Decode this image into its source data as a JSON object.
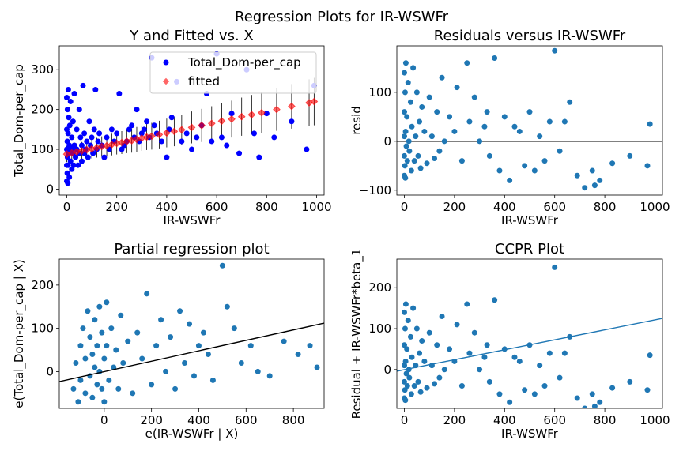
{
  "figure": {
    "suptitle": "Regression Plots for IR-WSWFr",
    "background": "#ffffff"
  },
  "colors": {
    "observed": "#0000ff",
    "fitted": "#ff0000",
    "scatter": "#1f77b4",
    "error_bars": "#000000",
    "fit_line_black": "#000000",
    "ccpr_line": "#1f77b4",
    "zero_line": "#000000"
  },
  "chart_data": [
    {
      "id": "yfit",
      "type": "scatter",
      "title": "Y and Fitted vs. X",
      "xlabel": "IR-WSWFr",
      "ylabel": "Total_Dom-per_cap",
      "xlim": [
        -30,
        1030
      ],
      "ylim": [
        -15,
        360
      ],
      "xticks": [
        0,
        200,
        400,
        600,
        800,
        1000
      ],
      "yticks": [
        0,
        100,
        200,
        300
      ],
      "legend": {
        "placement": "top-right",
        "entries": [
          "Total_Dom-per_cap",
          "fitted"
        ]
      },
      "series": [
        {
          "name": "Total_Dom-per_cap",
          "marker": "circle",
          "x": [
            0,
            0,
            0,
            0,
            0,
            2,
            2,
            3,
            3,
            4,
            5,
            5,
            6,
            8,
            8,
            10,
            10,
            12,
            15,
            15,
            18,
            20,
            20,
            25,
            25,
            28,
            30,
            30,
            35,
            40,
            40,
            45,
            50,
            50,
            55,
            60,
            60,
            65,
            70,
            70,
            75,
            80,
            85,
            90,
            95,
            100,
            105,
            110,
            115,
            120,
            125,
            130,
            140,
            150,
            160,
            170,
            180,
            190,
            200,
            210,
            220,
            230,
            240,
            250,
            260,
            270,
            280,
            290,
            300,
            310,
            320,
            330,
            340,
            350,
            360,
            380,
            400,
            410,
            420,
            440,
            460,
            480,
            500,
            520,
            540,
            560,
            580,
            600,
            620,
            640,
            660,
            690,
            720,
            750,
            770,
            800,
            830,
            900,
            960,
            990
          ],
          "y": [
            20,
            60,
            100,
            150,
            230,
            40,
            120,
            80,
            200,
            15,
            60,
            140,
            250,
            90,
            180,
            30,
            110,
            160,
            70,
            220,
            100,
            50,
            130,
            90,
            170,
            60,
            110,
            240,
            80,
            100,
            150,
            60,
            90,
            200,
            130,
            70,
            110,
            260,
            90,
            140,
            100,
            120,
            80,
            170,
            110,
            130,
            90,
            150,
            250,
            100,
            120,
            140,
            110,
            80,
            130,
            100,
            150,
            120,
            140,
            240,
            100,
            110,
            120,
            150,
            160,
            130,
            200,
            120,
            140,
            150,
            170,
            130,
            330,
            160,
            140,
            120,
            80,
            150,
            180,
            270,
            120,
            140,
            100,
            130,
            160,
            240,
            120,
            340,
            130,
            110,
            190,
            90,
            300,
            140,
            80,
            190,
            130,
            170,
            100,
            260
          ]
        },
        {
          "name": "fitted",
          "marker": "diamond",
          "x": [
            0,
            20,
            40,
            60,
            80,
            100,
            120,
            140,
            160,
            180,
            200,
            220,
            240,
            260,
            280,
            300,
            320,
            340,
            370,
            400,
            430,
            460,
            500,
            540,
            580,
            620,
            660,
            700,
            740,
            780,
            840,
            900,
            970,
            990
          ],
          "y": [
            88,
            91,
            94,
            96,
            99,
            101,
            104,
            107,
            109,
            112,
            115,
            117,
            120,
            122,
            125,
            128,
            131,
            133,
            137,
            141,
            145,
            149,
            155,
            160,
            165,
            171,
            176,
            182,
            187,
            192,
            200,
            208,
            217,
            220
          ]
        }
      ]
    },
    {
      "id": "resid",
      "type": "scatter",
      "title": "Residuals versus IR-WSWFr",
      "xlabel": "IR-WSWFr",
      "ylabel": "resid",
      "xlim": [
        -30,
        1030
      ],
      "ylim": [
        -110,
        195
      ],
      "xticks": [
        0,
        200,
        400,
        600,
        800,
        1000
      ],
      "yticks": [
        -100,
        0,
        100
      ],
      "zero_line": 0,
      "x": [
        0,
        0,
        0,
        0,
        0,
        2,
        3,
        4,
        5,
        6,
        8,
        10,
        12,
        15,
        18,
        20,
        25,
        28,
        30,
        35,
        40,
        45,
        50,
        55,
        60,
        65,
        70,
        80,
        90,
        100,
        110,
        120,
        130,
        140,
        150,
        160,
        180,
        200,
        210,
        230,
        250,
        260,
        280,
        300,
        320,
        330,
        340,
        360,
        380,
        400,
        420,
        440,
        460,
        480,
        500,
        520,
        540,
        560,
        580,
        600,
        620,
        640,
        660,
        690,
        720,
        750,
        760,
        780,
        830,
        900,
        970,
        980
      ],
      "y": [
        -70,
        -30,
        10,
        60,
        140,
        -50,
        100,
        -75,
        20,
        160,
        -10,
        50,
        -40,
        120,
        0,
        -20,
        80,
        -60,
        30,
        150,
        -40,
        10,
        100,
        -30,
        40,
        -55,
        70,
        20,
        -45,
        90,
        10,
        -35,
        60,
        -20,
        130,
        0,
        50,
        20,
        110,
        -40,
        160,
        40,
        90,
        0,
        30,
        60,
        -30,
        170,
        -60,
        50,
        -80,
        30,
        20,
        -50,
        60,
        -60,
        10,
        -40,
        40,
        185,
        -20,
        40,
        80,
        -70,
        -95,
        -60,
        -90,
        -80,
        -45,
        -30,
        -50,
        35
      ]
    },
    {
      "id": "partial",
      "type": "scatter",
      "title": "Partial regression plot",
      "xlabel": "e(IR-WSWFr | X)",
      "ylabel": "e(Total_Dom-per_cap | X)",
      "xlim": [
        -190,
        930
      ],
      "ylim": [
        -85,
        260
      ],
      "xticks": [
        0,
        200,
        400,
        600,
        800
      ],
      "yticks": [
        0,
        100,
        200
      ],
      "fit_line": {
        "x": [
          -190,
          930
        ],
        "y": [
          -23,
          112
        ]
      },
      "x": [
        -130,
        -120,
        -110,
        -100,
        -100,
        -90,
        -80,
        -80,
        -70,
        -60,
        -60,
        -50,
        -50,
        -40,
        -40,
        -30,
        -30,
        -20,
        -20,
        -10,
        -10,
        0,
        0,
        10,
        10,
        20,
        30,
        40,
        50,
        60,
        70,
        80,
        100,
        120,
        140,
        160,
        180,
        200,
        220,
        240,
        260,
        280,
        300,
        320,
        340,
        360,
        380,
        400,
        420,
        440,
        460,
        500,
        520,
        550,
        580,
        620,
        650,
        700,
        760,
        820,
        870,
        900
      ],
      "y": [
        -40,
        20,
        -70,
        60,
        -20,
        100,
        -50,
        30,
        140,
        -10,
        80,
        40,
        -60,
        10,
        120,
        -30,
        60,
        0,
        150,
        -40,
        90,
        30,
        -70,
        60,
        160,
        -20,
        100,
        10,
        50,
        -40,
        130,
        20,
        70,
        -50,
        90,
        30,
        180,
        -30,
        60,
        120,
        0,
        80,
        -40,
        140,
        20,
        110,
        -10,
        60,
        90,
        40,
        -20,
        245,
        150,
        100,
        20,
        60,
        0,
        -10,
        70,
        40,
        60,
        10
      ]
    },
    {
      "id": "ccpr",
      "type": "scatter",
      "title": "CCPR Plot",
      "xlabel": "IR-WSWFr",
      "ylabel": "Residual + IR-WSWFr*beta_1",
      "xlim": [
        -30,
        1030
      ],
      "ylim": [
        -95,
        270
      ],
      "xticks": [
        0,
        200,
        400,
        600,
        800,
        1000
      ],
      "yticks": [
        0,
        100,
        200
      ],
      "fit_line": {
        "x": [
          -30,
          1030
        ],
        "y": [
          -4,
          125
        ]
      },
      "x": [
        0,
        0,
        0,
        0,
        0,
        2,
        3,
        4,
        5,
        6,
        8,
        10,
        12,
        15,
        18,
        20,
        25,
        28,
        30,
        35,
        40,
        45,
        50,
        55,
        60,
        65,
        70,
        80,
        90,
        100,
        110,
        120,
        130,
        140,
        150,
        160,
        180,
        200,
        210,
        230,
        250,
        260,
        280,
        300,
        320,
        330,
        340,
        360,
        380,
        400,
        420,
        440,
        460,
        480,
        500,
        520,
        540,
        560,
        580,
        600,
        620,
        640,
        660,
        690,
        720,
        750,
        760,
        780,
        830,
        900,
        970,
        980
      ],
      "y": [
        -70,
        -30,
        10,
        60,
        140,
        -50,
        100,
        -75,
        20,
        160,
        -10,
        50,
        -40,
        120,
        0,
        -20,
        80,
        -60,
        30,
        150,
        -40,
        10,
        100,
        -30,
        40,
        -55,
        70,
        20,
        -45,
        90,
        10,
        -35,
        60,
        -20,
        130,
        0,
        50,
        20,
        110,
        -40,
        160,
        40,
        90,
        0,
        30,
        60,
        -30,
        170,
        -60,
        50,
        -80,
        30,
        20,
        -50,
        60,
        -60,
        10,
        -40,
        40,
        250,
        -20,
        40,
        80,
        -70,
        -95,
        -60,
        -90,
        -80,
        -45,
        -30,
        -50,
        35
      ]
    }
  ]
}
